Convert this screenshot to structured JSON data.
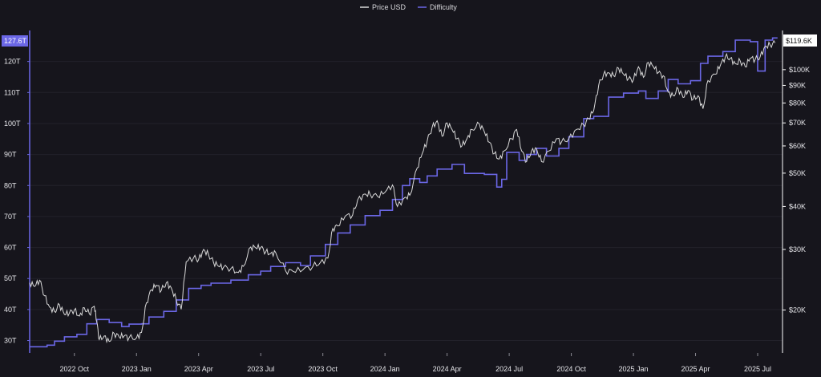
{
  "chart_data": {
    "type": "line",
    "colors": {
      "background": "#16151c",
      "grid": "#22212a",
      "price": "#d9d9d9",
      "difficulty": "#6b67e6",
      "axis_right": "#ffffff",
      "axis_left": "#6b67e6"
    },
    "legend": {
      "placement": "top-center",
      "items": [
        {
          "name": "Price USD",
          "color": "#d9d9d9"
        },
        {
          "name": "Difficulty",
          "color": "#6b67e6"
        }
      ]
    },
    "x_ticks": [
      {
        "label": "2022 Oct",
        "t": 2022.75
      },
      {
        "label": "2023 Jan",
        "t": 2023.0
      },
      {
        "label": "2023 Apr",
        "t": 2023.25
      },
      {
        "label": "2023 Jul",
        "t": 2023.5
      },
      {
        "label": "2023 Oct",
        "t": 2023.75
      },
      {
        "label": "2024 Jan",
        "t": 2024.0
      },
      {
        "label": "2024 Apr",
        "t": 2024.25
      },
      {
        "label": "2024 Jul",
        "t": 2024.5
      },
      {
        "label": "2024 Oct",
        "t": 2024.75
      },
      {
        "label": "2025 Jan",
        "t": 2025.0
      },
      {
        "label": "2025 Apr",
        "t": 2025.25
      },
      {
        "label": "2025 Jul",
        "t": 2025.5
      }
    ],
    "x_range": [
      2022.57,
      2025.6
    ],
    "left_axis": {
      "name": "Difficulty",
      "unit": "T",
      "range": [
        26,
        130
      ],
      "ticks": [
        {
          "value": 30,
          "label": "30T"
        },
        {
          "value": 40,
          "label": "40T"
        },
        {
          "value": 50,
          "label": "50T"
        },
        {
          "value": 60,
          "label": "60T"
        },
        {
          "value": 70,
          "label": "70T"
        },
        {
          "value": 80,
          "label": "80T"
        },
        {
          "value": 90,
          "label": "90T"
        },
        {
          "value": 100,
          "label": "100T"
        },
        {
          "value": 110,
          "label": "110T"
        },
        {
          "value": 120,
          "label": "120T"
        }
      ],
      "current_label": "127.6T"
    },
    "right_axis": {
      "name": "Price USD",
      "scale": "log",
      "range": [
        15000,
        130000
      ],
      "ticks": [
        {
          "value": 20000,
          "label": "$20K"
        },
        {
          "value": 30000,
          "label": "$30K"
        },
        {
          "value": 40000,
          "label": "$40K"
        },
        {
          "value": 50000,
          "label": "$50K"
        },
        {
          "value": 60000,
          "label": "$60K"
        },
        {
          "value": 70000,
          "label": "$70K"
        },
        {
          "value": 80000,
          "label": "$80K"
        },
        {
          "value": 90000,
          "label": "$90K"
        },
        {
          "value": 100000,
          "label": "$100K"
        }
      ],
      "current_label": "$119.6K"
    },
    "series": [
      {
        "name": "Difficulty",
        "type": "step",
        "points": [
          [
            2022.57,
            28.0
          ],
          [
            2022.64,
            28.5
          ],
          [
            2022.67,
            29.8
          ],
          [
            2022.71,
            31.2
          ],
          [
            2022.76,
            32.0
          ],
          [
            2022.8,
            35.4
          ],
          [
            2022.84,
            36.8
          ],
          [
            2022.89,
            35.8
          ],
          [
            2022.94,
            34.5
          ],
          [
            2022.97,
            35.3
          ],
          [
            2023.02,
            35.4
          ],
          [
            2023.05,
            37.6
          ],
          [
            2023.11,
            39.4
          ],
          [
            2023.16,
            43.1
          ],
          [
            2023.21,
            46.8
          ],
          [
            2023.26,
            47.8
          ],
          [
            2023.3,
            48.5
          ],
          [
            2023.38,
            49.5
          ],
          [
            2023.45,
            51.2
          ],
          [
            2023.5,
            52.4
          ],
          [
            2023.54,
            53.9
          ],
          [
            2023.6,
            55.1
          ],
          [
            2023.66,
            54.2
          ],
          [
            2023.7,
            57.3
          ],
          [
            2023.76,
            61.0
          ],
          [
            2023.81,
            64.7
          ],
          [
            2023.86,
            67.3
          ],
          [
            2023.92,
            70.3
          ],
          [
            2023.98,
            72.0
          ],
          [
            2024.03,
            75.5
          ],
          [
            2024.07,
            80.0
          ],
          [
            2024.1,
            82.2
          ],
          [
            2024.14,
            81.0
          ],
          [
            2024.17,
            83.1
          ],
          [
            2024.21,
            85.3
          ],
          [
            2024.27,
            86.8
          ],
          [
            2024.32,
            83.9
          ],
          [
            2024.4,
            83.6
          ],
          [
            2024.45,
            79.5
          ],
          [
            2024.47,
            82.0
          ],
          [
            2024.49,
            90.7
          ],
          [
            2024.54,
            88.1
          ],
          [
            2024.57,
            90.0
          ],
          [
            2024.61,
            92.0
          ],
          [
            2024.65,
            89.5
          ],
          [
            2024.7,
            92.0
          ],
          [
            2024.74,
            95.7
          ],
          [
            2024.8,
            101.6
          ],
          [
            2024.84,
            102.3
          ],
          [
            2024.9,
            108.5
          ],
          [
            2024.96,
            109.8
          ],
          [
            2025.02,
            110.5
          ],
          [
            2025.05,
            108.1
          ],
          [
            2025.1,
            110.5
          ],
          [
            2025.14,
            114.2
          ],
          [
            2025.18,
            112.8
          ],
          [
            2025.23,
            113.8
          ],
          [
            2025.27,
            119.4
          ],
          [
            2025.3,
            121.7
          ],
          [
            2025.36,
            123.2
          ],
          [
            2025.41,
            126.9
          ],
          [
            2025.47,
            126.4
          ],
          [
            2025.5,
            116.9
          ],
          [
            2025.53,
            126.9
          ],
          [
            2025.56,
            127.6
          ],
          [
            2025.58,
            127.6
          ]
        ]
      },
      {
        "name": "Price USD",
        "type": "line",
        "points": [
          [
            2022.57,
            24000
          ],
          [
            2022.59,
            23400
          ],
          [
            2022.61,
            24400
          ],
          [
            2022.63,
            22000
          ],
          [
            2022.65,
            20400
          ],
          [
            2022.67,
            19800
          ],
          [
            2022.69,
            20700
          ],
          [
            2022.71,
            19400
          ],
          [
            2022.73,
            19600
          ],
          [
            2022.75,
            20000
          ],
          [
            2022.77,
            19200
          ],
          [
            2022.79,
            20300
          ],
          [
            2022.81,
            19500
          ],
          [
            2022.83,
            20500
          ],
          [
            2022.84,
            18500
          ],
          [
            2022.85,
            16400
          ],
          [
            2022.87,
            16800
          ],
          [
            2022.89,
            16200
          ],
          [
            2022.91,
            17100
          ],
          [
            2022.93,
            16700
          ],
          [
            2022.95,
            16800
          ],
          [
            2022.97,
            16600
          ],
          [
            2023.0,
            16600
          ],
          [
            2023.02,
            17200
          ],
          [
            2023.04,
            21000
          ],
          [
            2023.06,
            22900
          ],
          [
            2023.08,
            23600
          ],
          [
            2023.1,
            22800
          ],
          [
            2023.12,
            24000
          ],
          [
            2023.14,
            23200
          ],
          [
            2023.16,
            21400
          ],
          [
            2023.18,
            20100
          ],
          [
            2023.2,
            27600
          ],
          [
            2023.23,
            28400
          ],
          [
            2023.25,
            28000
          ],
          [
            2023.27,
            30000
          ],
          [
            2023.29,
            29000
          ],
          [
            2023.31,
            27500
          ],
          [
            2023.33,
            26800
          ],
          [
            2023.35,
            26600
          ],
          [
            2023.38,
            26400
          ],
          [
            2023.41,
            25700
          ],
          [
            2023.43,
            26800
          ],
          [
            2023.46,
            30500
          ],
          [
            2023.48,
            30300
          ],
          [
            2023.5,
            30400
          ],
          [
            2023.52,
            29500
          ],
          [
            2023.54,
            29200
          ],
          [
            2023.56,
            29400
          ],
          [
            2023.6,
            26000
          ],
          [
            2023.63,
            25900
          ],
          [
            2023.67,
            26200
          ],
          [
            2023.71,
            26800
          ],
          [
            2023.74,
            27500
          ],
          [
            2023.77,
            28300
          ],
          [
            2023.79,
            34500
          ],
          [
            2023.81,
            35100
          ],
          [
            2023.84,
            37500
          ],
          [
            2023.87,
            37800
          ],
          [
            2023.89,
            41800
          ],
          [
            2023.92,
            43500
          ],
          [
            2023.94,
            43400
          ],
          [
            2023.97,
            42800
          ],
          [
            2024.0,
            44000
          ],
          [
            2024.03,
            46200
          ],
          [
            2024.05,
            40000
          ],
          [
            2024.08,
            42500
          ],
          [
            2024.1,
            43100
          ],
          [
            2024.13,
            51800
          ],
          [
            2024.15,
            57000
          ],
          [
            2024.17,
            62000
          ],
          [
            2024.19,
            68000
          ],
          [
            2024.21,
            71000
          ],
          [
            2024.23,
            64000
          ],
          [
            2024.25,
            70000
          ],
          [
            2024.27,
            67000
          ],
          [
            2024.29,
            63000
          ],
          [
            2024.31,
            60000
          ],
          [
            2024.33,
            63000
          ],
          [
            2024.35,
            67000
          ],
          [
            2024.38,
            69500
          ],
          [
            2024.4,
            66000
          ],
          [
            2024.42,
            61500
          ],
          [
            2024.44,
            57000
          ],
          [
            2024.46,
            55000
          ],
          [
            2024.48,
            58000
          ],
          [
            2024.51,
            63000
          ],
          [
            2024.53,
            67000
          ],
          [
            2024.55,
            58000
          ],
          [
            2024.57,
            54000
          ],
          [
            2024.59,
            58000
          ],
          [
            2024.61,
            59000
          ],
          [
            2024.63,
            54000
          ],
          [
            2024.66,
            58000
          ],
          [
            2024.69,
            63000
          ],
          [
            2024.71,
            61500
          ],
          [
            2024.74,
            63000
          ],
          [
            2024.77,
            67000
          ],
          [
            2024.8,
            69000
          ],
          [
            2024.82,
            72000
          ],
          [
            2024.84,
            76000
          ],
          [
            2024.86,
            90000
          ],
          [
            2024.88,
            97000
          ],
          [
            2024.9,
            98000
          ],
          [
            2024.92,
            96000
          ],
          [
            2024.94,
            101000
          ],
          [
            2024.96,
            97000
          ],
          [
            2024.98,
            94000
          ],
          [
            2025.0,
            93500
          ],
          [
            2025.02,
            102000
          ],
          [
            2025.04,
            95000
          ],
          [
            2025.06,
            105000
          ],
          [
            2025.08,
            102000
          ],
          [
            2025.1,
            98000
          ],
          [
            2025.12,
            96000
          ],
          [
            2025.14,
            86000
          ],
          [
            2025.16,
            84000
          ],
          [
            2025.18,
            88000
          ],
          [
            2025.2,
            83000
          ],
          [
            2025.22,
            87000
          ],
          [
            2025.24,
            82000
          ],
          [
            2025.26,
            84000
          ],
          [
            2025.28,
            77000
          ],
          [
            2025.3,
            93000
          ],
          [
            2025.33,
            97000
          ],
          [
            2025.35,
            103000
          ],
          [
            2025.37,
            109000
          ],
          [
            2025.39,
            108000
          ],
          [
            2025.41,
            104000
          ],
          [
            2025.43,
            106000
          ],
          [
            2025.45,
            102000
          ],
          [
            2025.47,
            108000
          ],
          [
            2025.49,
            107000
          ],
          [
            2025.51,
            109000
          ],
          [
            2025.53,
            117000
          ],
          [
            2025.55,
            118000
          ],
          [
            2025.57,
            119600
          ]
        ]
      }
    ]
  }
}
